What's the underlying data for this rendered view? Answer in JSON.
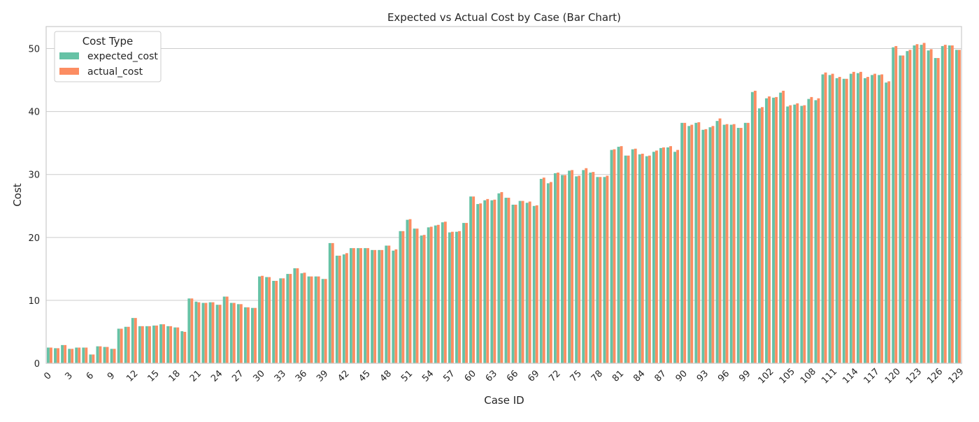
{
  "chart_data": {
    "type": "bar",
    "title": "Expected vs Actual Cost by Case (Bar Chart)",
    "xlabel": "Case ID",
    "ylabel": "Cost",
    "ylim": [
      0,
      53.5
    ],
    "yticks": [
      0,
      10,
      20,
      30,
      40,
      50
    ],
    "grid": "y",
    "xtick_step": 3,
    "categories": [
      0,
      1,
      2,
      3,
      4,
      5,
      6,
      7,
      8,
      9,
      10,
      11,
      12,
      13,
      14,
      15,
      16,
      17,
      18,
      19,
      20,
      21,
      22,
      23,
      24,
      25,
      26,
      27,
      28,
      29,
      30,
      31,
      32,
      33,
      34,
      35,
      36,
      37,
      38,
      39,
      40,
      41,
      42,
      43,
      44,
      45,
      46,
      47,
      48,
      49,
      50,
      51,
      52,
      53,
      54,
      55,
      56,
      57,
      58,
      59,
      60,
      61,
      62,
      63,
      64,
      65,
      66,
      67,
      68,
      69,
      70,
      71,
      72,
      73,
      74,
      75,
      76,
      77,
      78,
      79,
      80,
      81,
      82,
      83,
      84,
      85,
      86,
      87,
      88,
      89,
      90,
      91,
      92,
      93,
      94,
      95,
      96,
      97,
      98,
      99,
      100,
      101,
      102,
      103,
      104,
      105,
      106,
      107,
      108,
      109,
      110,
      111,
      112,
      113,
      114,
      115,
      116,
      117,
      118,
      119,
      120,
      121,
      122,
      123,
      124,
      125,
      126,
      127,
      128,
      129
    ],
    "legend": {
      "title": "Cost Type",
      "placement": "top-left"
    },
    "series": [
      {
        "name": "expected_cost",
        "color": "#66c2a5",
        "values": [
          2.5,
          2.4,
          2.9,
          2.3,
          2.5,
          2.5,
          1.4,
          2.7,
          2.6,
          2.3,
          5.5,
          5.8,
          7.2,
          5.9,
          5.9,
          6.0,
          6.2,
          5.9,
          5.7,
          5.1,
          10.3,
          9.8,
          9.6,
          9.7,
          9.3,
          10.6,
          9.6,
          9.4,
          8.9,
          8.8,
          13.8,
          13.7,
          13.1,
          13.5,
          14.2,
          15.1,
          14.3,
          13.8,
          13.8,
          13.4,
          19.1,
          17.1,
          17.3,
          18.3,
          18.3,
          18.3,
          18.0,
          18.0,
          18.7,
          17.9,
          21.0,
          22.8,
          21.4,
          20.3,
          21.6,
          21.9,
          22.4,
          20.8,
          20.9,
          22.3,
          26.5,
          25.3,
          25.9,
          25.9,
          27.0,
          26.3,
          25.2,
          25.8,
          25.5,
          25.0,
          29.3,
          28.6,
          30.2,
          29.9,
          30.6,
          29.7,
          30.7,
          30.3,
          29.6,
          29.6,
          33.9,
          34.4,
          33.0,
          34.0,
          33.2,
          32.9,
          33.6,
          34.2,
          34.3,
          33.6,
          38.2,
          37.7,
          38.2,
          37.1,
          37.5,
          38.5,
          37.9,
          37.9,
          37.4,
          38.2,
          43.1,
          40.5,
          42.1,
          42.2,
          43.0,
          40.8,
          41.1,
          40.9,
          42.0,
          41.8,
          45.9,
          45.8,
          45.3,
          45.2,
          46.0,
          46.1,
          45.3,
          45.8,
          45.8,
          44.6,
          50.2,
          48.9,
          49.6,
          50.5,
          50.6,
          49.7,
          48.5,
          50.4,
          50.5,
          49.8
        ]
      },
      {
        "name": "actual_cost",
        "color": "#fc8d62",
        "values": [
          2.5,
          2.4,
          2.9,
          2.3,
          2.5,
          2.5,
          1.4,
          2.7,
          2.6,
          2.3,
          5.5,
          5.8,
          7.2,
          5.9,
          5.9,
          6.0,
          6.2,
          5.9,
          5.7,
          5.0,
          10.3,
          9.7,
          9.6,
          9.7,
          9.3,
          10.6,
          9.6,
          9.4,
          8.9,
          8.8,
          13.9,
          13.7,
          13.1,
          13.5,
          14.2,
          15.1,
          14.4,
          13.8,
          13.8,
          13.4,
          19.1,
          17.1,
          17.5,
          18.3,
          18.3,
          18.3,
          18.0,
          18.0,
          18.7,
          18.1,
          21.0,
          22.9,
          21.4,
          20.4,
          21.7,
          22.0,
          22.5,
          20.9,
          21.0,
          22.3,
          26.5,
          25.4,
          26.1,
          26.0,
          27.2,
          26.3,
          25.2,
          25.8,
          25.7,
          25.1,
          29.5,
          28.8,
          30.3,
          29.9,
          30.7,
          29.8,
          31.0,
          30.4,
          29.6,
          29.8,
          34.0,
          34.5,
          33.0,
          34.1,
          33.3,
          33.0,
          33.8,
          34.3,
          34.5,
          33.9,
          38.2,
          37.9,
          38.3,
          37.2,
          37.7,
          38.9,
          38.0,
          38.0,
          37.4,
          38.2,
          43.3,
          40.7,
          42.4,
          42.3,
          43.3,
          41.0,
          41.3,
          41.0,
          42.3,
          42.1,
          46.2,
          46.0,
          45.5,
          45.2,
          46.3,
          46.3,
          45.5,
          46.0,
          45.9,
          44.8,
          50.4,
          48.9,
          49.8,
          50.7,
          50.9,
          49.9,
          48.5,
          50.6,
          50.5,
          49.8
        ]
      }
    ]
  }
}
